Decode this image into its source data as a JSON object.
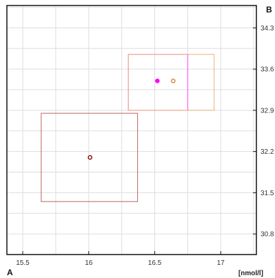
{
  "chart_data": {
    "type": "scatter",
    "title": "",
    "xlabel": "[nmol/l]",
    "ylabel": "",
    "corner_labels": {
      "x_axis": "A",
      "y_axis": "B"
    },
    "xlim": [
      15.38,
      17.27
    ],
    "ylim": [
      30.45,
      34.68
    ],
    "x_ticks": [
      {
        "value": 15.5,
        "label": "15.5"
      },
      {
        "value": 16,
        "label": "16"
      },
      {
        "value": 16.5,
        "label": "16.5"
      },
      {
        "value": 17,
        "label": "17"
      }
    ],
    "y_ticks": [
      {
        "value": 30.8,
        "label": "30.8"
      },
      {
        "value": 31.5,
        "label": "31.5"
      },
      {
        "value": 32.2,
        "label": "32.2"
      },
      {
        "value": 32.9,
        "label": "32.9"
      },
      {
        "value": 33.6,
        "label": "33.6"
      },
      {
        "value": 34.3,
        "label": "34.3"
      }
    ],
    "x_grid_step": 0.25,
    "y_grid_step": 0.35,
    "grid": true,
    "series": [
      {
        "point": {
          "x": 16.01,
          "y": 32.1
        },
        "box": {
          "x_min": 15.64,
          "x_max": 16.37,
          "y_min": 31.35,
          "y_max": 32.85
        },
        "color": "#8b0000",
        "box_color": "#c06060",
        "hollow": true
      },
      {
        "point": {
          "x": 16.52,
          "y": 33.4
        },
        "box": {
          "x_min": 16.3,
          "x_max": 16.75,
          "y_min": 32.9,
          "y_max": 33.85
        },
        "color": "#ff00ff",
        "box_color": "#ff44ff",
        "hollow": false
      },
      {
        "point": {
          "x": 16.64,
          "y": 33.4
        },
        "box": {
          "x_min": 16.3,
          "x_max": 16.95,
          "y_min": 32.9,
          "y_max": 33.85
        },
        "color": "#d2873a",
        "box_color": "#e8b07a",
        "hollow": true
      }
    ]
  }
}
